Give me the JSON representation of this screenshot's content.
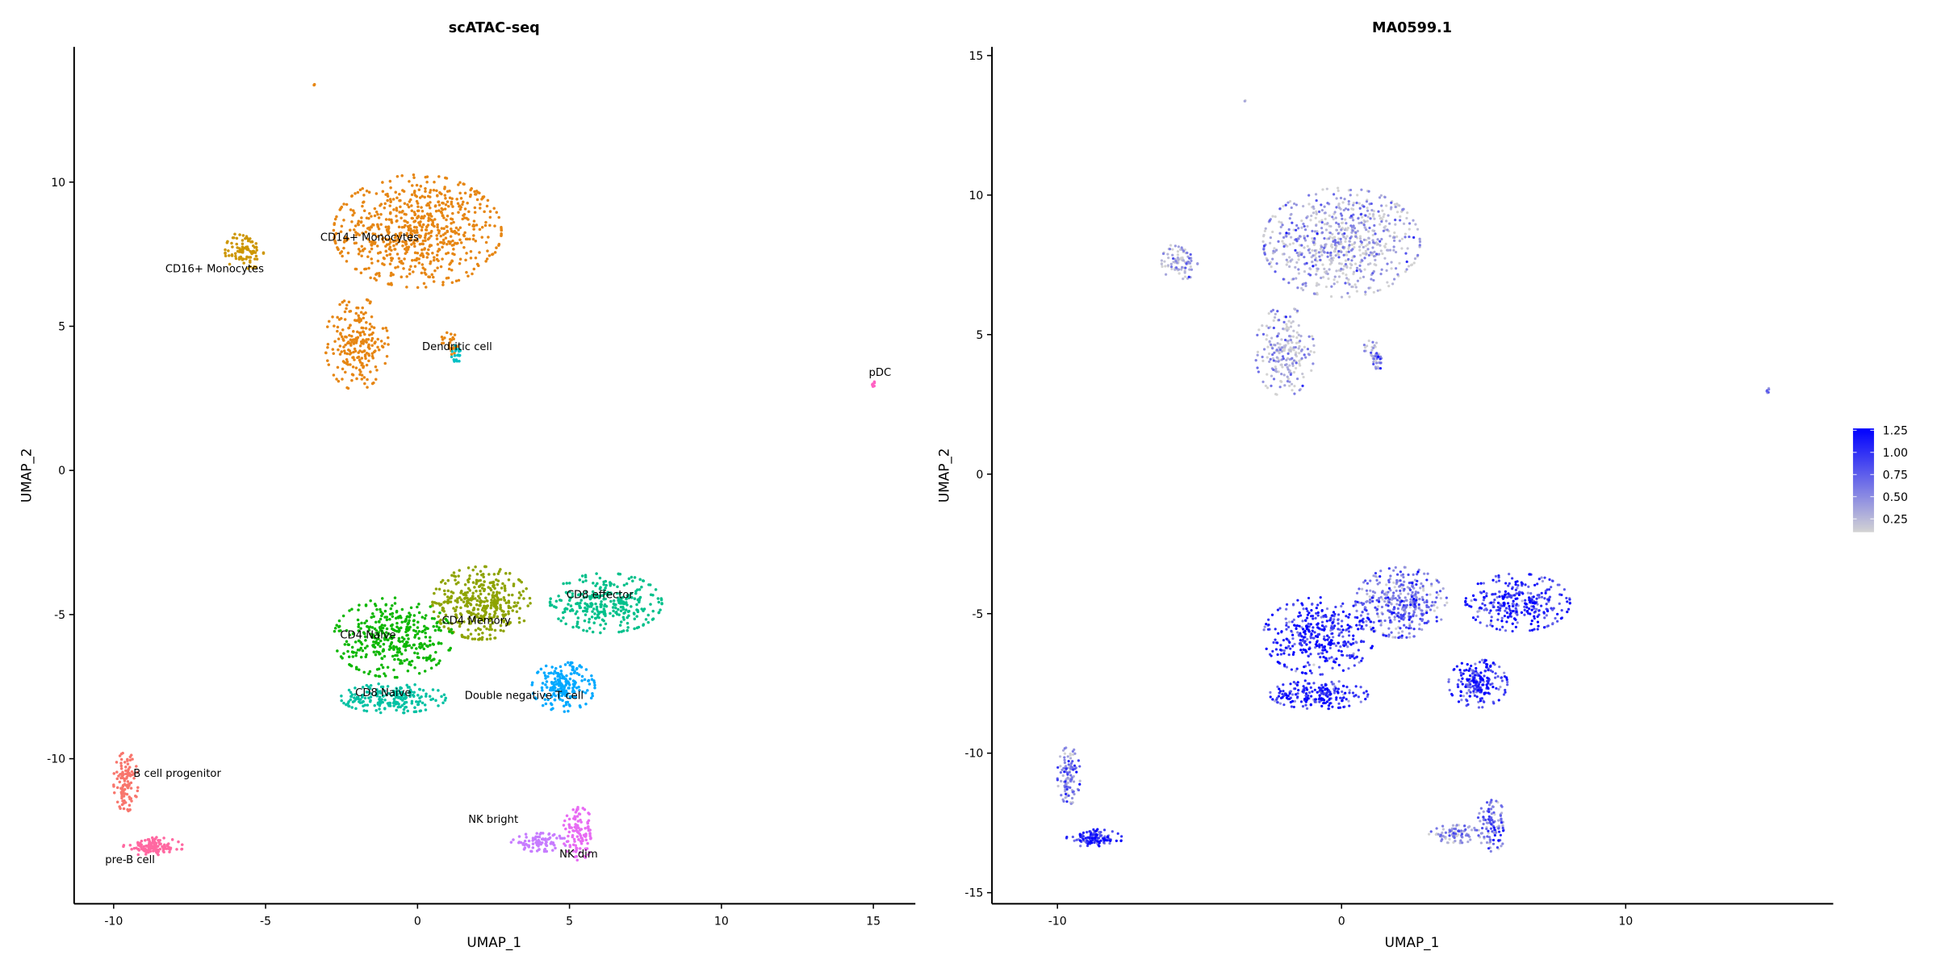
{
  "chart_data": [
    {
      "type": "scatter",
      "title": "scATAC-seq",
      "xlabel": "UMAP_1",
      "ylabel": "UMAP_2",
      "xticks": [
        -10,
        -5,
        0,
        5,
        10,
        15
      ],
      "yticks": [
        -10,
        -5,
        0,
        5,
        10
      ],
      "xlim": [
        -11.3,
        16.5
      ],
      "ylim": [
        -15.2,
        14.5
      ],
      "grid": false,
      "legend": "none",
      "clusters": [
        {
          "name": "CD14+ Monocytes",
          "color": "#E68613",
          "label_at": [
            -3.2,
            8.1
          ],
          "blobs": [
            [
              0,
              8.3,
              2.4,
              1.7,
              700
            ],
            [
              -2.0,
              4.4,
              0.9,
              1.4,
              220
            ],
            [
              1.1,
              4.4,
              0.3,
              0.4,
              25
            ],
            [
              -3.4,
              13.4,
              0.05,
              0.05,
              3
            ]
          ]
        },
        {
          "name": "CD16+ Monocytes",
          "color": "#CD9600",
          "label_at": [
            -8.3,
            7.0
          ],
          "blobs": [
            [
              -5.7,
              7.6,
              0.55,
              0.6,
              90
            ]
          ]
        },
        {
          "name": "Dendritic cell",
          "color": "#00BFC4",
          "label_at": [
            0.15,
            4.3
          ],
          "blobs": [
            [
              1.3,
              4.0,
              0.2,
              0.3,
              20
            ]
          ]
        },
        {
          "name": "pDC",
          "color": "#FF61C3",
          "label_at": [
            14.85,
            3.4
          ],
          "blobs": [
            [
              15.0,
              3.0,
              0.12,
              0.1,
              8
            ]
          ]
        },
        {
          "name": "CD4 Memory",
          "color": "#8EA300",
          "label_at": [
            0.8,
            -5.2
          ],
          "blobs": [
            [
              2.1,
              -4.6,
              1.4,
              1.1,
              380
            ]
          ]
        },
        {
          "name": "CD8 effector",
          "color": "#00C08B",
          "label_at": [
            4.9,
            -4.3
          ],
          "blobs": [
            [
              6.2,
              -4.6,
              1.6,
              0.9,
              300
            ]
          ]
        },
        {
          "name": "CD4 Naive",
          "color": "#0CB702",
          "label_at": [
            -2.55,
            -5.7
          ],
          "blobs": [
            [
              -0.8,
              -5.8,
              1.7,
              1.2,
              380
            ]
          ]
        },
        {
          "name": "CD8 Naive",
          "color": "#00C1A3",
          "label_at": [
            -2.05,
            -7.7
          ],
          "blobs": [
            [
              -0.8,
              -7.9,
              1.5,
              0.45,
              200
            ]
          ]
        },
        {
          "name": "Double negative T cell",
          "color": "#00A9FF",
          "label_at": [
            1.55,
            -7.8
          ],
          "blobs": [
            [
              4.8,
              -7.5,
              0.9,
              0.75,
              200
            ]
          ]
        },
        {
          "name": "B cell progenitor",
          "color": "#F8766D",
          "label_at": [
            -9.35,
            -10.5
          ],
          "blobs": [
            [
              -9.6,
              -10.8,
              0.35,
              0.9,
              110
            ]
          ]
        },
        {
          "name": "pre-B cell",
          "color": "#FF68A1",
          "label_at": [
            -10.28,
            -13.5
          ],
          "blobs": [
            [
              -8.7,
              -13.05,
              0.85,
              0.28,
              120
            ]
          ]
        },
        {
          "name": "NK bright",
          "color": "#C77CFF",
          "label_at": [
            1.67,
            -12.1
          ],
          "blobs": [
            [
              4.0,
              -12.9,
              0.8,
              0.28,
              90
            ]
          ]
        },
        {
          "name": "NK dim",
          "color": "#E76BF3",
          "label_at": [
            4.67,
            -13.3
          ],
          "blobs": [
            [
              5.3,
              -12.6,
              0.45,
              0.8,
              110
            ]
          ]
        }
      ]
    },
    {
      "type": "scatter",
      "title": "MA0599.1",
      "xlabel": "UMAP_1",
      "ylabel": "UMAP_2",
      "xticks": [
        -10,
        0,
        10
      ],
      "yticks": [
        -15,
        -10,
        -5,
        0,
        5,
        10,
        15
      ],
      "xlim": [
        -12.3,
        17.3
      ],
      "ylim": [
        -15.3,
        15.2
      ],
      "grid": false,
      "legend": "right",
      "colorbar": {
        "ticks": [
          "0.25",
          "0.50",
          "0.75",
          "1.00",
          "1.25"
        ],
        "range": [
          0.1,
          1.27
        ],
        "low_color": "#D3D3D3",
        "high_color": "#0000FF"
      },
      "cluster_mean_values": {
        "CD14+ Monocytes": 0.25,
        "CD16+ Monocytes": 0.25,
        "Dendritic cell": 0.6,
        "pDC": 0.6,
        "CD4 Memory": 0.6,
        "CD8 effector": 0.95,
        "CD4 Naive": 1.0,
        "CD8 Naive": 1.0,
        "Double negative T cell": 0.95,
        "B cell progenitor": 0.5,
        "pre-B cell": 0.95,
        "NK bright": 0.45,
        "NK dim": 0.6
      }
    }
  ]
}
